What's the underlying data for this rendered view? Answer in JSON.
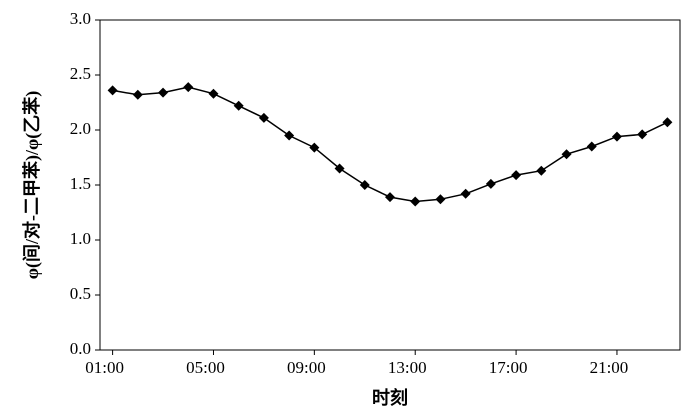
{
  "chart_data": {
    "type": "line",
    "x_label": "时刻",
    "y_label": "φ(间/对-二甲苯)/φ(乙苯)",
    "categories": [
      "01:00",
      null,
      null,
      null,
      "05:00",
      null,
      null,
      null,
      "09:00",
      null,
      null,
      null,
      "13:00",
      null,
      null,
      null,
      "17:00",
      null,
      null,
      null,
      "21:00",
      null,
      null
    ],
    "values": [
      2.36,
      2.32,
      2.34,
      2.39,
      2.33,
      2.22,
      2.11,
      1.95,
      1.84,
      1.65,
      1.5,
      1.39,
      1.35,
      1.37,
      1.42,
      1.51,
      1.59,
      1.63,
      1.78,
      1.85,
      1.94,
      1.96,
      2.07
    ],
    "color": "#000000",
    "marker": "diamond",
    "ylim": [
      0,
      3
    ],
    "yticks": [
      {
        "value": 0,
        "label": "0.0"
      },
      0.5,
      {
        "value": 1,
        "label": "1.0"
      },
      1.5,
      {
        "value": 2,
        "label": "2.0"
      },
      2.5,
      {
        "value": 3,
        "label": "3.0"
      }
    ],
    "grid": false
  }
}
